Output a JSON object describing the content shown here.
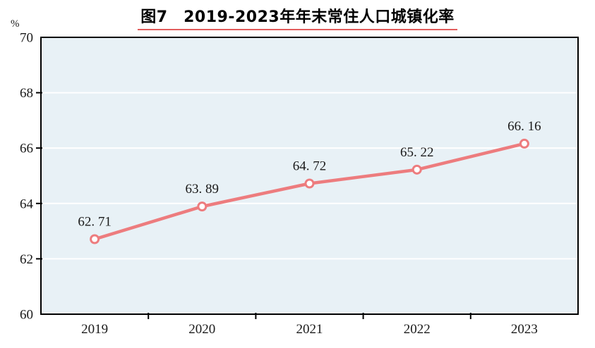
{
  "chart_data": {
    "type": "line",
    "title": "图7　2019-2023年年末常住人口城镇化率",
    "unit_label": "%",
    "categories": [
      "2019",
      "2020",
      "2021",
      "2022",
      "2023"
    ],
    "series": [
      {
        "name": "年末常住人口城镇化率",
        "values": [
          62.71,
          63.89,
          64.72,
          65.22,
          66.16
        ]
      }
    ],
    "data_labels": [
      "62.71",
      "63.89",
      "64.72",
      "65.22",
      "66.16"
    ],
    "xlabel": "",
    "ylabel": "%",
    "ylim": [
      60,
      70
    ],
    "yticks": [
      60,
      62,
      64,
      66,
      68,
      70
    ],
    "grid": "horizontal",
    "legend_position": "none",
    "colors": {
      "line": "#ed7c7e",
      "marker_fill": "#ffffff",
      "plot_background": "#e8f1f6",
      "gridline": "#ffffff",
      "axis_border": "#000000",
      "tick": "#000000",
      "title_underline": "#e25d5d",
      "text": "#1a1a1a"
    }
  }
}
